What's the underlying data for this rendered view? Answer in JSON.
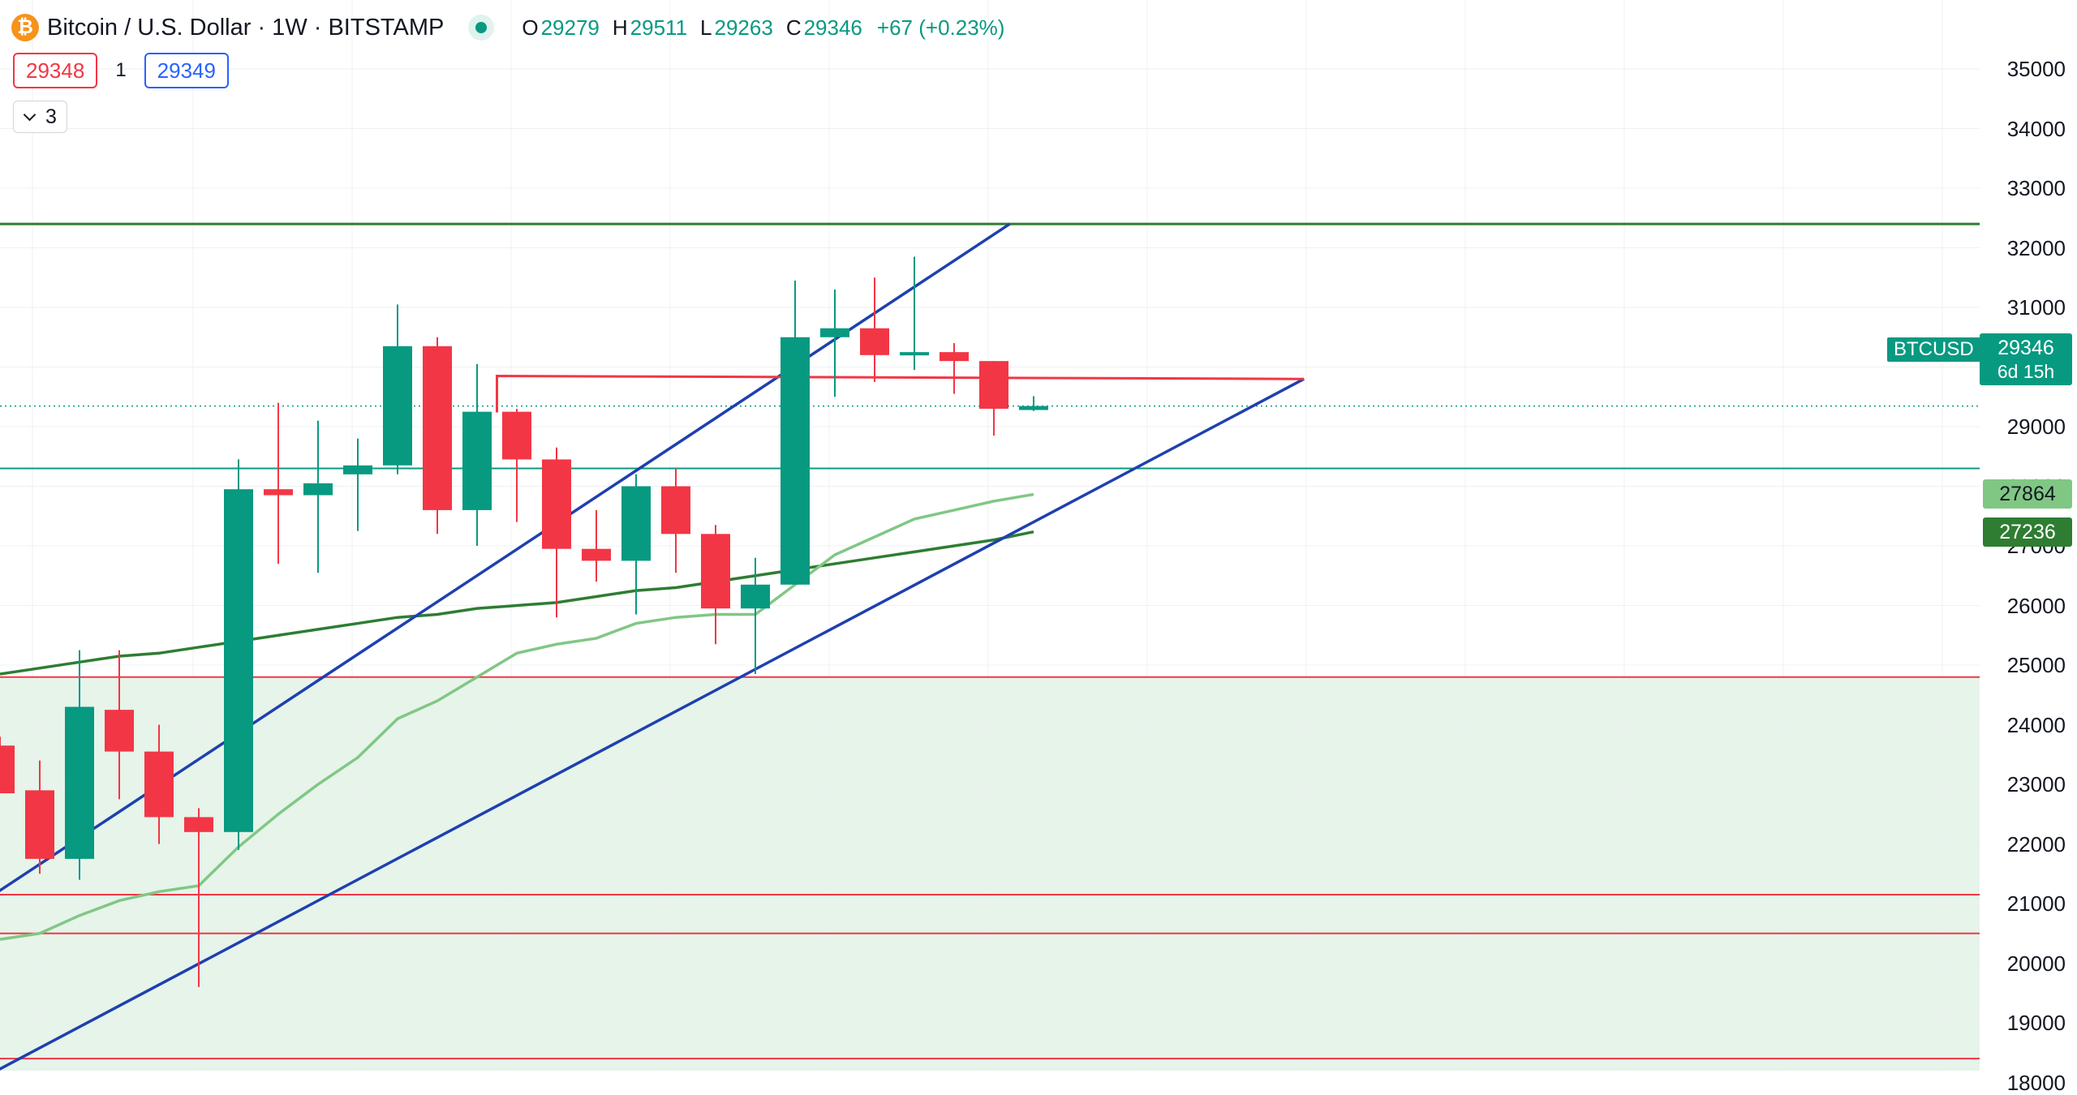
{
  "legend": {
    "coin_icon_text": "₿",
    "symbol_title": "Bitcoin / U.S. Dollar · 1W · BITSTAMP",
    "open_key": "O",
    "open": "29279",
    "high_key": "H",
    "high": "29511",
    "low_key": "L",
    "low": "29263",
    "close_key": "C",
    "close": "29346",
    "change": "+67 (+0.23%)"
  },
  "quote": {
    "sell": "29348",
    "spread": "1",
    "buy": "29349"
  },
  "indicators_toggle": {
    "count": "3"
  },
  "price_scale": {
    "labels": [
      "35000",
      "34000",
      "33000",
      "32000",
      "31000",
      "30000",
      "29000",
      "28000",
      "27000",
      "26000",
      "25000",
      "24000",
      "23000",
      "22000",
      "21000",
      "20000",
      "19000",
      "18000"
    ]
  },
  "last_price": {
    "symbol": "BTCUSD",
    "price": "29346",
    "countdown": "6d 15h"
  },
  "ma_badges": {
    "fast": "27864",
    "slow": "27236"
  },
  "colors": {
    "up": "#089981",
    "down": "#f23645",
    "channel": "#1e40af",
    "ma_slow": "#2e7d32",
    "ma_fast": "#81c784",
    "support_zone": "#e6f4ea",
    "resistance_red": "#f23645",
    "level_green": "#2e7d32"
  },
  "chart_data": {
    "type": "candlestick",
    "symbol": "Bitcoin / U.S. Dollar",
    "interval": "1W",
    "exchange": "BITSTAMP",
    "ylim": [
      17500,
      35200
    ],
    "candles": [
      {
        "o": 23650,
        "h": 23800,
        "l": 22850,
        "c": 22850
      },
      {
        "o": 22900,
        "h": 23400,
        "l": 21500,
        "c": 21750
      },
      {
        "o": 21750,
        "h": 25250,
        "l": 21400,
        "c": 24300
      },
      {
        "o": 24250,
        "h": 25250,
        "l": 22750,
        "c": 23550
      },
      {
        "o": 23550,
        "h": 24000,
        "l": 22000,
        "c": 22450
      },
      {
        "o": 22450,
        "h": 22600,
        "l": 19600,
        "c": 22200
      },
      {
        "o": 22200,
        "h": 28450,
        "l": 21900,
        "c": 27950
      },
      {
        "o": 27950,
        "h": 29400,
        "l": 26700,
        "c": 27850
      },
      {
        "o": 27850,
        "h": 29100,
        "l": 26550,
        "c": 28050
      },
      {
        "o": 28200,
        "h": 28800,
        "l": 27250,
        "c": 28350
      },
      {
        "o": 28350,
        "h": 31050,
        "l": 28200,
        "c": 30350
      },
      {
        "o": 30350,
        "h": 30500,
        "l": 27200,
        "c": 27600
      },
      {
        "o": 27600,
        "h": 30050,
        "l": 27000,
        "c": 29250
      },
      {
        "o": 29250,
        "h": 29300,
        "l": 27400,
        "c": 28450
      },
      {
        "o": 28450,
        "h": 28650,
        "l": 25800,
        "c": 26950
      },
      {
        "o": 26950,
        "h": 27600,
        "l": 26400,
        "c": 26750
      },
      {
        "o": 26750,
        "h": 28200,
        "l": 25850,
        "c": 28000
      },
      {
        "o": 28000,
        "h": 28300,
        "l": 26550,
        "c": 27200
      },
      {
        "o": 27200,
        "h": 27350,
        "l": 25350,
        "c": 25950
      },
      {
        "o": 25950,
        "h": 26800,
        "l": 24850,
        "c": 26350
      },
      {
        "o": 26350,
        "h": 31450,
        "l": 26350,
        "c": 30500
      },
      {
        "o": 30500,
        "h": 31300,
        "l": 29500,
        "c": 30650
      },
      {
        "o": 30650,
        "h": 31500,
        "l": 29750,
        "c": 30200
      },
      {
        "o": 30200,
        "h": 31850,
        "l": 29950,
        "c": 30250
      },
      {
        "o": 30250,
        "h": 30400,
        "l": 29550,
        "c": 30100
      },
      {
        "o": 30100,
        "h": 30100,
        "l": 28850,
        "c": 29300
      },
      {
        "o": 29279,
        "h": 29511,
        "l": 29263,
        "c": 29346
      }
    ],
    "ma_fast": [
      20400,
      20500,
      20800,
      21050,
      21200,
      21300,
      21950,
      22500,
      23000,
      23450,
      24100,
      24400,
      24800,
      25200,
      25350,
      25450,
      25700,
      25800,
      25850,
      25850,
      26350,
      26850,
      27150,
      27450,
      27600,
      27750,
      27864
    ],
    "ma_slow": [
      24850,
      24950,
      25050,
      25150,
      25200,
      25300,
      25400,
      25500,
      25600,
      25700,
      25800,
      25850,
      25950,
      26000,
      26050,
      26150,
      26250,
      26300,
      26400,
      26500,
      26600,
      26700,
      26800,
      26900,
      27000,
      27100,
      27236
    ],
    "horizontal_levels": [
      {
        "price": 32400,
        "color": "green"
      },
      {
        "price": 28300,
        "color": "teal"
      },
      {
        "price": 24800,
        "color": "red"
      },
      {
        "price": 21150,
        "color": "red"
      },
      {
        "price": 20500,
        "color": "red"
      },
      {
        "price": 18400,
        "color": "red"
      },
      {
        "price": 18050,
        "color": "red",
        "style": "dotted"
      }
    ],
    "resistance_line": {
      "from_bar": 12.5,
      "to_bar": 32.8,
      "price_start": 29850,
      "price_end": 29800
    },
    "channel_upper": [
      {
        "bar": -0.5,
        "price": 21000
      },
      {
        "bar": 25.4,
        "price": 32400
      }
    ],
    "channel_lower": [
      {
        "bar": -0.5,
        "price": 18050
      },
      {
        "bar": 32.8,
        "price": 29800
      }
    ],
    "support_zone": {
      "top": 24800,
      "bottom": 17500
    },
    "last_price_line": 29346
  }
}
